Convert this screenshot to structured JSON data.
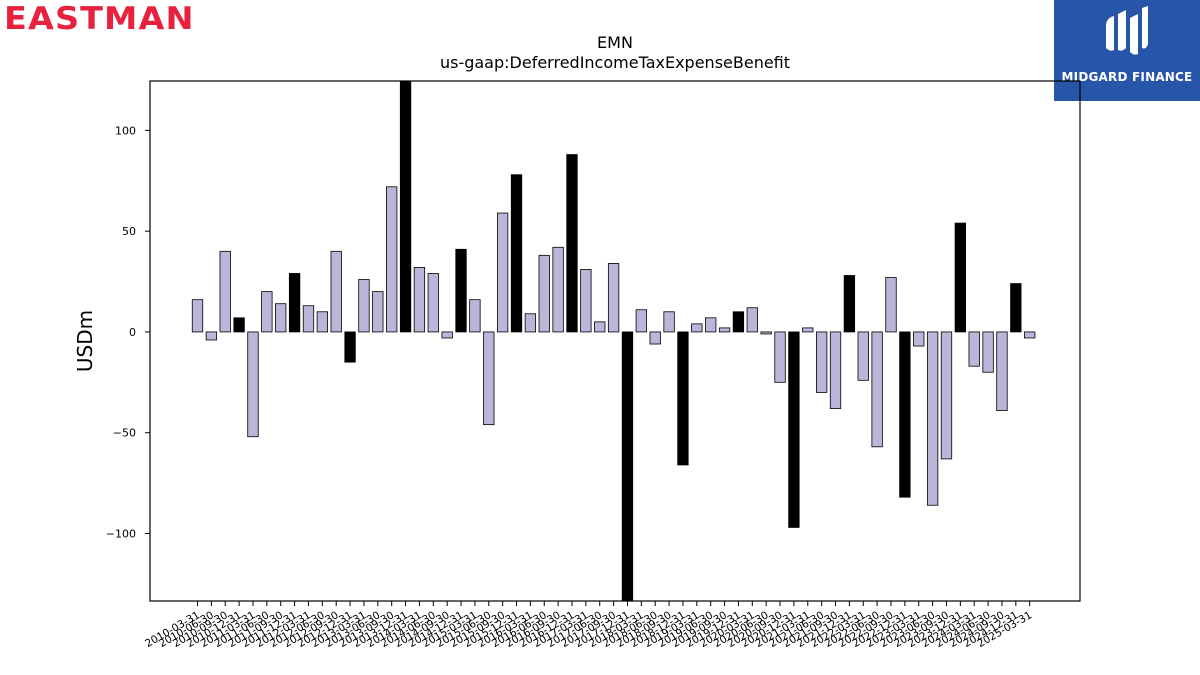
{
  "branding": {
    "company_logo_text": "EASTMAN",
    "partner_name": "MIDGARD FINANCE",
    "company_color": "#e8213e",
    "partner_color": "#2756a9"
  },
  "colors": {
    "bar_regular": "#bab6da",
    "bar_q4": "#000000",
    "bar_edge": "#000000"
  },
  "chart_data": {
    "type": "bar",
    "title": "EMN",
    "subtitle": "us-gaap:DeferredIncomeTaxExpenseBenefit",
    "ylabel": "USDm",
    "xlabel": "",
    "ylim": [
      -133.5,
      124.5
    ],
    "yticks": [
      -100,
      -50,
      0,
      50,
      100
    ],
    "ytick_labels": [
      "−100",
      "−50",
      "0",
      "50",
      "100"
    ],
    "categories": [
      "2010-03-31",
      "2010-06-30",
      "2010-09-30",
      "2010-12-31",
      "2011-03-31",
      "2011-06-30",
      "2011-09-30",
      "2011-12-31",
      "2012-03-31",
      "2012-06-30",
      "2012-09-30",
      "2012-12-31",
      "2013-03-31",
      "2013-06-30",
      "2013-09-30",
      "2013-12-31",
      "2014-03-31",
      "2014-06-30",
      "2014-09-30",
      "2014-12-31",
      "2015-03-31",
      "2015-06-30",
      "2015-09-30",
      "2015-12-31",
      "2016-03-31",
      "2016-06-30",
      "2016-09-30",
      "2016-12-31",
      "2017-03-31",
      "2017-06-30",
      "2017-09-30",
      "2017-12-31",
      "2018-03-31",
      "2018-06-30",
      "2018-09-30",
      "2018-12-31",
      "2019-03-31",
      "2019-06-30",
      "2019-09-30",
      "2019-12-31",
      "2020-03-31",
      "2020-06-30",
      "2020-09-30",
      "2020-12-31",
      "2021-03-31",
      "2021-06-30",
      "2021-09-30",
      "2021-12-31",
      "2022-03-31",
      "2022-06-30",
      "2022-09-30",
      "2022-12-31",
      "2023-03-31",
      "2023-06-30",
      "2023-09-30",
      "2023-12-31",
      "2024-03-31",
      "2024-06-30",
      "2024-09-30",
      "2024-12-31",
      "2025-03-31"
    ],
    "values": [
      16,
      -4,
      40,
      7,
      -52,
      20,
      14,
      29,
      13,
      10,
      40,
      -15,
      26,
      20,
      72,
      125,
      32,
      29,
      -3,
      41,
      16,
      -46,
      59,
      78,
      9,
      38,
      42,
      88,
      31,
      5,
      34,
      -135,
      11,
      -6,
      10,
      -66,
      4,
      7,
      2,
      10,
      12,
      -1,
      -25,
      -97,
      2,
      -30,
      -38,
      28,
      -24,
      -57,
      27,
      -82,
      -7,
      -86,
      -63,
      54,
      -17,
      -20,
      -39,
      24,
      -3
    ],
    "highlight_rule": "December quarter-ends (12-31) drawn in black"
  }
}
